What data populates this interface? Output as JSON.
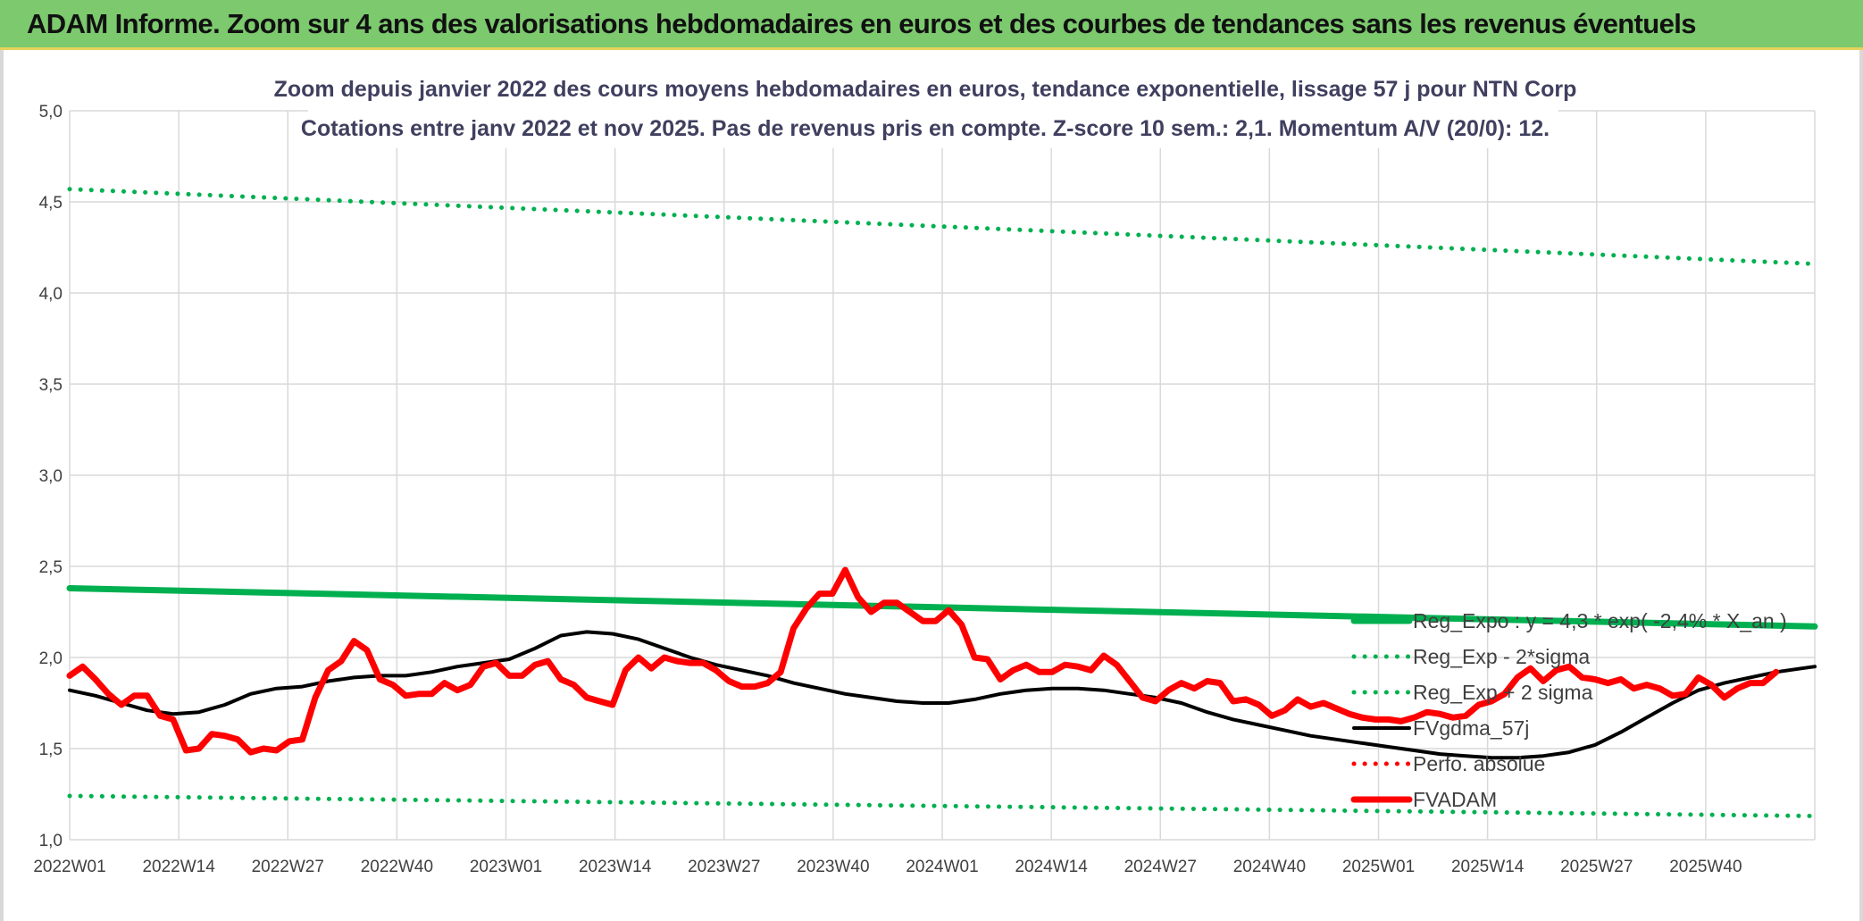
{
  "banner": {
    "title": "ADAM Informe. Zoom sur 4 ans des valorisations hebdomadaires en euros et des courbes de tendances sans les revenus éventuels"
  },
  "colors": {
    "banner": "#7cc96e",
    "trend": "#00b050",
    "band": "#00b050",
    "price": "#ff0000",
    "smooth": "#000000",
    "perf": "#ff0000"
  },
  "chart_data": {
    "type": "line",
    "title": "Zoom depuis janvier 2022 des cours moyens hebdomadaires en euros, tendance exponentielle, lissage 57 j pour NTN Corp",
    "subtitle": "Cotations entre janv 2022 et nov 2025. Pas de revenus pris en compte. Z-score 10 sem.: 2,1. Momentum A/V (20/0): 12.",
    "xlabel": "",
    "ylabel": "",
    "ylim": [
      1.0,
      5.0
    ],
    "y_ticks": [
      "1,0",
      "1,5",
      "2,0",
      "2,5",
      "3,0",
      "3,5",
      "4,0",
      "4,5",
      "5,0"
    ],
    "x_ticks": [
      {
        "week": 0,
        "label": "2022W01"
      },
      {
        "week": 13,
        "label": "2022W14"
      },
      {
        "week": 26,
        "label": "2022W27"
      },
      {
        "week": 39,
        "label": "2022W40"
      },
      {
        "week": 52,
        "label": "2023W01"
      },
      {
        "week": 65,
        "label": "2023W14"
      },
      {
        "week": 78,
        "label": "2023W27"
      },
      {
        "week": 91,
        "label": "2023W40"
      },
      {
        "week": 104,
        "label": "2024W01"
      },
      {
        "week": 117,
        "label": "2024W14"
      },
      {
        "week": 130,
        "label": "2024W27"
      },
      {
        "week": 143,
        "label": "2024W40"
      },
      {
        "week": 156,
        "label": "2025W01"
      },
      {
        "week": 169,
        "label": "2025W14"
      },
      {
        "week": 182,
        "label": "2025W27"
      },
      {
        "week": 195,
        "label": "2025W40"
      }
    ],
    "x_max_week": 208,
    "grid": true,
    "legend_position": "bottom-right",
    "series": [
      {
        "name": "Reg_Expo : y = 4,3 * exp( -2,4% * X_an )",
        "style": "solid-thick",
        "color": "#00b050",
        "points": [
          [
            0,
            2.38
          ],
          [
            208,
            2.17
          ]
        ]
      },
      {
        "name": "Reg_Exp - 2*sigma",
        "style": "dotted",
        "color": "#00b050",
        "points": [
          [
            0,
            1.24
          ],
          [
            208,
            1.13
          ]
        ]
      },
      {
        "name": "Reg_Exp + 2 sigma",
        "style": "dotted",
        "color": "#00b050",
        "points": [
          [
            0,
            4.57
          ],
          [
            208,
            4.16
          ]
        ]
      },
      {
        "name": "FVgdma_57j",
        "style": "solid",
        "color": "#000000",
        "points": [
          [
            0,
            1.82
          ],
          [
            4,
            1.79
          ],
          [
            8,
            1.75
          ],
          [
            12,
            1.71
          ],
          [
            16,
            1.69
          ],
          [
            20,
            1.7
          ],
          [
            24,
            1.74
          ],
          [
            28,
            1.8
          ],
          [
            32,
            1.83
          ],
          [
            36,
            1.84
          ],
          [
            40,
            1.87
          ],
          [
            44,
            1.89
          ],
          [
            48,
            1.9
          ],
          [
            52,
            1.9
          ],
          [
            56,
            1.92
          ],
          [
            60,
            1.95
          ],
          [
            64,
            1.97
          ],
          [
            68,
            1.99
          ],
          [
            72,
            2.05
          ],
          [
            76,
            2.12
          ],
          [
            80,
            2.14
          ],
          [
            84,
            2.13
          ],
          [
            88,
            2.1
          ],
          [
            92,
            2.05
          ],
          [
            96,
            2.0
          ],
          [
            100,
            1.96
          ],
          [
            104,
            1.93
          ],
          [
            108,
            1.9
          ],
          [
            112,
            1.86
          ],
          [
            116,
            1.83
          ],
          [
            120,
            1.8
          ],
          [
            124,
            1.78
          ],
          [
            128,
            1.76
          ],
          [
            132,
            1.75
          ],
          [
            136,
            1.75
          ],
          [
            140,
            1.77
          ],
          [
            144,
            1.8
          ],
          [
            148,
            1.82
          ],
          [
            152,
            1.83
          ],
          [
            156,
            1.83
          ],
          [
            160,
            1.82
          ],
          [
            164,
            1.8
          ],
          [
            168,
            1.78
          ],
          [
            172,
            1.75
          ],
          [
            176,
            1.7
          ],
          [
            180,
            1.66
          ],
          [
            184,
            1.63
          ],
          [
            188,
            1.6
          ],
          [
            192,
            1.57
          ],
          [
            196,
            1.55
          ],
          [
            200,
            1.53
          ],
          [
            204,
            1.51
          ],
          [
            208,
            1.49
          ],
          [
            212,
            1.47
          ],
          [
            216,
            1.46
          ],
          [
            220,
            1.45
          ],
          [
            224,
            1.45
          ],
          [
            228,
            1.46
          ],
          [
            232,
            1.48
          ],
          [
            236,
            1.52
          ],
          [
            240,
            1.59
          ],
          [
            244,
            1.67
          ],
          [
            248,
            1.75
          ],
          [
            252,
            1.82
          ],
          [
            256,
            1.86
          ],
          [
            260,
            1.89
          ],
          [
            264,
            1.92
          ],
          [
            268,
            1.94
          ],
          [
            270,
            1.95
          ]
        ]
      },
      {
        "name": "Perfo. absolue",
        "style": "dotted",
        "color": "#ff0000",
        "points": []
      },
      {
        "name": "FVADAM",
        "style": "solid-thick",
        "color": "#ff0000",
        "points": [
          [
            0,
            1.9
          ],
          [
            2,
            1.95
          ],
          [
            4,
            1.88
          ],
          [
            6,
            1.8
          ],
          [
            8,
            1.74
          ],
          [
            10,
            1.79
          ],
          [
            12,
            1.79
          ],
          [
            14,
            1.68
          ],
          [
            16,
            1.66
          ],
          [
            18,
            1.49
          ],
          [
            20,
            1.5
          ],
          [
            22,
            1.58
          ],
          [
            24,
            1.57
          ],
          [
            26,
            1.55
          ],
          [
            28,
            1.48
          ],
          [
            30,
            1.5
          ],
          [
            32,
            1.49
          ],
          [
            34,
            1.54
          ],
          [
            36,
            1.55
          ],
          [
            38,
            1.78
          ],
          [
            40,
            1.93
          ],
          [
            42,
            1.98
          ],
          [
            44,
            2.09
          ],
          [
            46,
            2.04
          ],
          [
            48,
            1.88
          ],
          [
            50,
            1.85
          ],
          [
            52,
            1.79
          ],
          [
            54,
            1.8
          ],
          [
            56,
            1.8
          ],
          [
            58,
            1.86
          ],
          [
            60,
            1.82
          ],
          [
            62,
            1.85
          ],
          [
            64,
            1.95
          ],
          [
            66,
            1.97
          ],
          [
            68,
            1.9
          ],
          [
            70,
            1.9
          ],
          [
            72,
            1.96
          ],
          [
            74,
            1.98
          ],
          [
            76,
            1.88
          ],
          [
            78,
            1.85
          ],
          [
            80,
            1.78
          ],
          [
            82,
            1.76
          ],
          [
            84,
            1.74
          ],
          [
            86,
            1.93
          ],
          [
            88,
            2.0
          ],
          [
            90,
            1.94
          ],
          [
            92,
            2.0
          ],
          [
            94,
            1.98
          ],
          [
            96,
            1.97
          ],
          [
            98,
            1.97
          ],
          [
            100,
            1.93
          ],
          [
            102,
            1.87
          ],
          [
            104,
            1.84
          ],
          [
            106,
            1.84
          ],
          [
            108,
            1.86
          ],
          [
            110,
            1.92
          ],
          [
            112,
            2.16
          ],
          [
            114,
            2.27
          ],
          [
            116,
            2.35
          ],
          [
            118,
            2.35
          ],
          [
            120,
            2.48
          ],
          [
            122,
            2.33
          ],
          [
            124,
            2.25
          ],
          [
            126,
            2.3
          ],
          [
            128,
            2.3
          ],
          [
            130,
            2.25
          ],
          [
            132,
            2.2
          ],
          [
            134,
            2.2
          ],
          [
            136,
            2.26
          ],
          [
            138,
            2.18
          ],
          [
            140,
            2.0
          ],
          [
            142,
            1.99
          ],
          [
            144,
            1.88
          ],
          [
            146,
            1.93
          ],
          [
            148,
            1.96
          ],
          [
            150,
            1.92
          ],
          [
            152,
            1.92
          ],
          [
            154,
            1.96
          ],
          [
            156,
            1.95
          ],
          [
            158,
            1.93
          ],
          [
            160,
            2.01
          ],
          [
            162,
            1.96
          ],
          [
            164,
            1.87
          ],
          [
            166,
            1.78
          ],
          [
            168,
            1.76
          ],
          [
            170,
            1.82
          ],
          [
            172,
            1.86
          ],
          [
            174,
            1.83
          ],
          [
            176,
            1.87
          ],
          [
            178,
            1.86
          ],
          [
            180,
            1.76
          ],
          [
            182,
            1.77
          ],
          [
            184,
            1.74
          ],
          [
            186,
            1.68
          ],
          [
            188,
            1.71
          ],
          [
            190,
            1.77
          ],
          [
            192,
            1.73
          ],
          [
            194,
            1.75
          ],
          [
            196,
            1.72
          ],
          [
            198,
            1.69
          ],
          [
            200,
            1.67
          ],
          [
            202,
            1.66
          ],
          [
            204,
            1.66
          ],
          [
            206,
            1.65
          ],
          [
            208,
            1.67
          ],
          [
            210,
            1.7
          ],
          [
            212,
            1.69
          ],
          [
            214,
            1.67
          ],
          [
            216,
            1.68
          ],
          [
            218,
            1.74
          ],
          [
            220,
            1.76
          ],
          [
            222,
            1.8
          ],
          [
            224,
            1.89
          ],
          [
            226,
            1.94
          ],
          [
            228,
            1.87
          ],
          [
            230,
            1.93
          ],
          [
            232,
            1.95
          ],
          [
            234,
            1.89
          ],
          [
            236,
            1.88
          ],
          [
            238,
            1.86
          ],
          [
            240,
            1.88
          ],
          [
            242,
            1.83
          ],
          [
            244,
            1.85
          ],
          [
            246,
            1.83
          ],
          [
            248,
            1.79
          ],
          [
            250,
            1.8
          ],
          [
            252,
            1.89
          ],
          [
            254,
            1.85
          ],
          [
            256,
            1.78
          ],
          [
            258,
            1.83
          ],
          [
            260,
            1.86
          ],
          [
            262,
            1.86
          ],
          [
            264,
            1.92
          ]
        ]
      }
    ]
  },
  "legend": {
    "items": [
      {
        "label": "Reg_Expo : y = 4,3 * exp( -2,4% * X_an )",
        "style": "solid-thick",
        "color": "#00b050"
      },
      {
        "label": "Reg_Exp - 2*sigma",
        "style": "dotted",
        "color": "#00b050"
      },
      {
        "label": "Reg_Exp + 2 sigma",
        "style": "dotted",
        "color": "#00b050"
      },
      {
        "label": "FVgdma_57j",
        "style": "solid",
        "color": "#000000"
      },
      {
        "label": "Perfo. absolue",
        "style": "dotted",
        "color": "#ff0000"
      },
      {
        "label": "FVADAM",
        "style": "solid-thick",
        "color": "#ff0000"
      }
    ]
  }
}
